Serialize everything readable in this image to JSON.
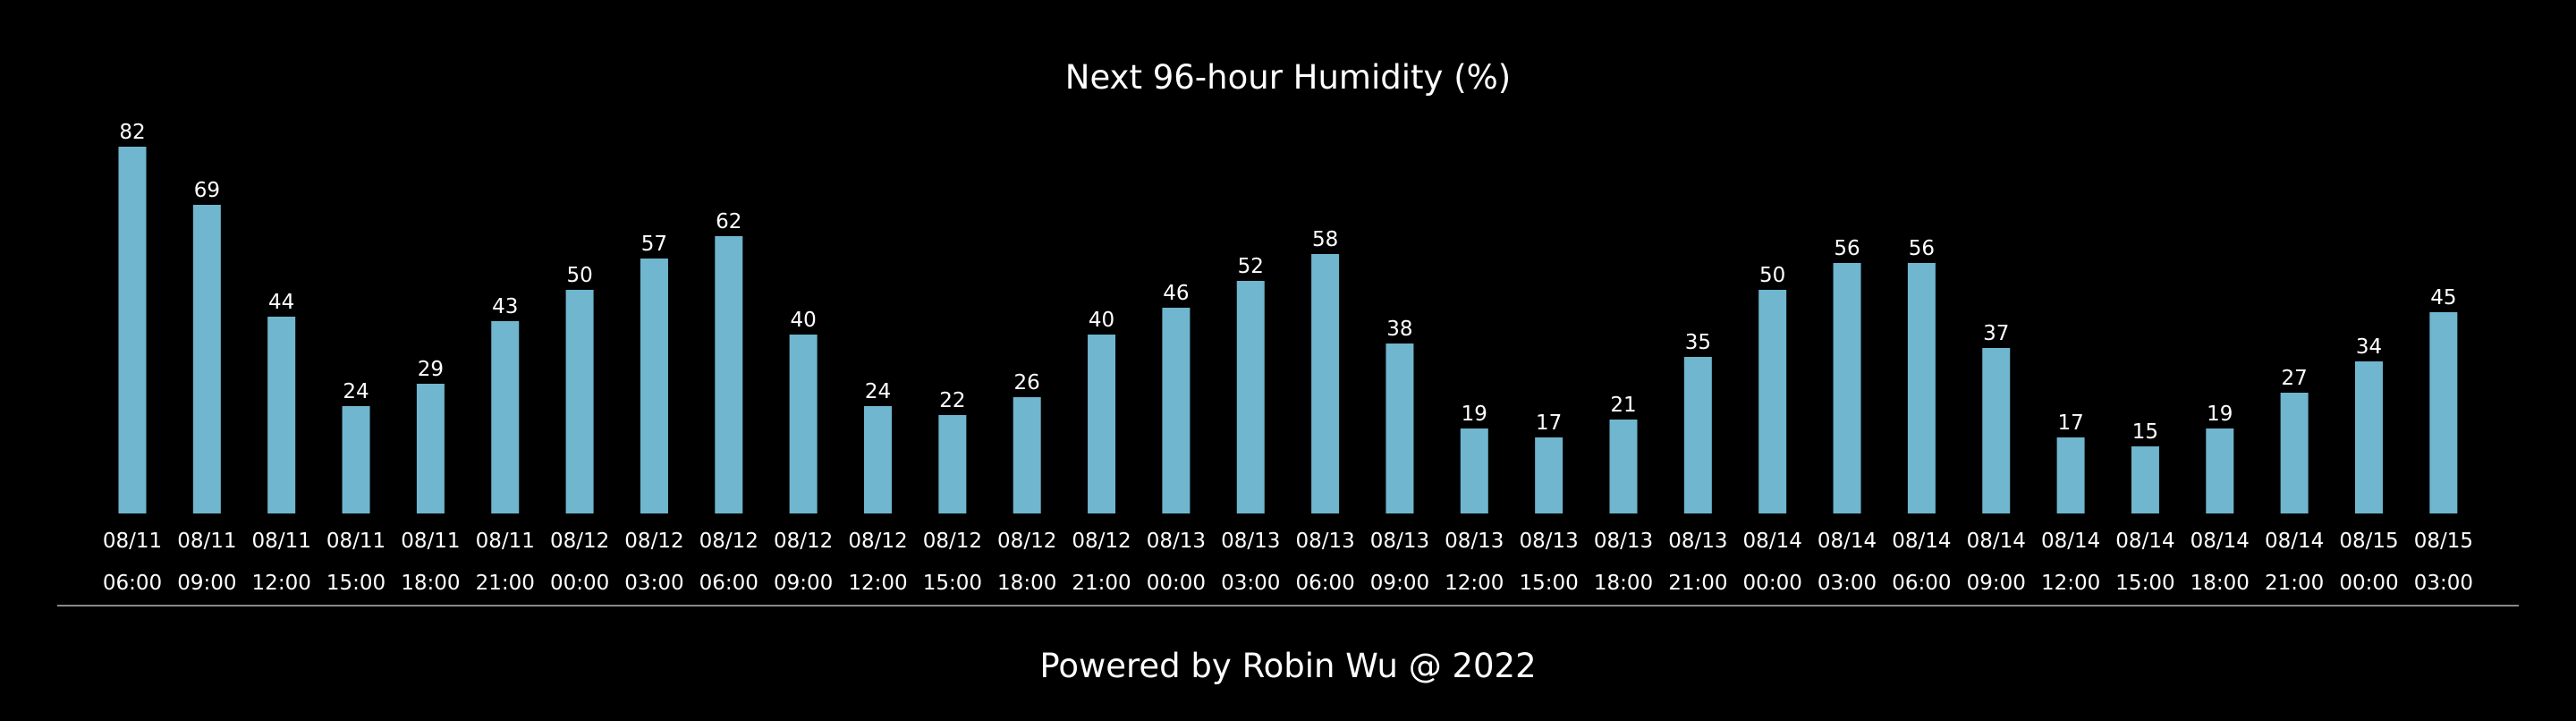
{
  "chart_data": {
    "type": "bar",
    "title": "Next 96-hour Humidity (%)",
    "xlabel": "",
    "ylabel": "",
    "ylim": [
      0,
      82
    ],
    "grid": false,
    "legend": "none",
    "bar_color": "#6fb6ce",
    "background_color": "#000000",
    "categories": [
      {
        "date": "08/11",
        "time": "06:00"
      },
      {
        "date": "08/11",
        "time": "09:00"
      },
      {
        "date": "08/11",
        "time": "12:00"
      },
      {
        "date": "08/11",
        "time": "15:00"
      },
      {
        "date": "08/11",
        "time": "18:00"
      },
      {
        "date": "08/11",
        "time": "21:00"
      },
      {
        "date": "08/12",
        "time": "00:00"
      },
      {
        "date": "08/12",
        "time": "03:00"
      },
      {
        "date": "08/12",
        "time": "06:00"
      },
      {
        "date": "08/12",
        "time": "09:00"
      },
      {
        "date": "08/12",
        "time": "12:00"
      },
      {
        "date": "08/12",
        "time": "15:00"
      },
      {
        "date": "08/12",
        "time": "18:00"
      },
      {
        "date": "08/12",
        "time": "21:00"
      },
      {
        "date": "08/13",
        "time": "00:00"
      },
      {
        "date": "08/13",
        "time": "03:00"
      },
      {
        "date": "08/13",
        "time": "06:00"
      },
      {
        "date": "08/13",
        "time": "09:00"
      },
      {
        "date": "08/13",
        "time": "12:00"
      },
      {
        "date": "08/13",
        "time": "15:00"
      },
      {
        "date": "08/13",
        "time": "18:00"
      },
      {
        "date": "08/13",
        "time": "21:00"
      },
      {
        "date": "08/14",
        "time": "00:00"
      },
      {
        "date": "08/14",
        "time": "03:00"
      },
      {
        "date": "08/14",
        "time": "06:00"
      },
      {
        "date": "08/14",
        "time": "09:00"
      },
      {
        "date": "08/14",
        "time": "12:00"
      },
      {
        "date": "08/14",
        "time": "15:00"
      },
      {
        "date": "08/14",
        "time": "18:00"
      },
      {
        "date": "08/14",
        "time": "21:00"
      },
      {
        "date": "08/15",
        "time": "00:00"
      },
      {
        "date": "08/15",
        "time": "03:00"
      }
    ],
    "values": [
      82,
      69,
      44,
      24,
      29,
      43,
      50,
      57,
      62,
      40,
      24,
      22,
      26,
      40,
      46,
      52,
      58,
      38,
      19,
      17,
      21,
      35,
      50,
      56,
      56,
      37,
      17,
      15,
      19,
      27,
      34,
      45
    ]
  },
  "footer": {
    "text": "Powered by Robin Wu @ 2022",
    "divider_color": "#8a8a8a"
  }
}
